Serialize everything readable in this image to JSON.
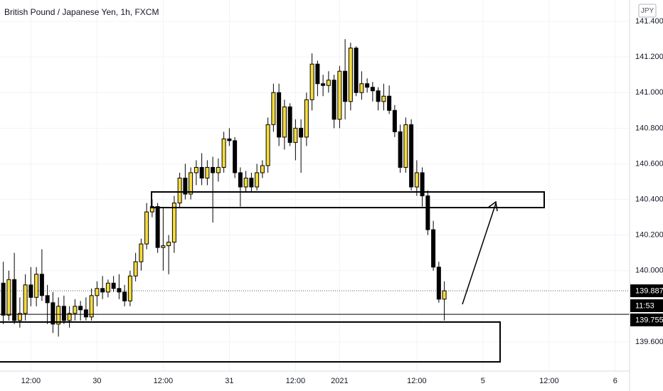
{
  "chart_data": {
    "type": "candlestick",
    "title": "British Pound / Japanese Yen, 1h, FXCM",
    "currency": "JPY",
    "up_color": "#f7dc3c",
    "down_color": "#000000",
    "x": [
      0,
      1,
      2,
      3,
      4,
      5,
      6,
      7,
      8,
      9,
      10,
      11,
      12,
      13,
      14,
      15,
      16,
      17,
      18,
      19,
      20,
      21,
      22,
      23,
      24,
      25,
      26,
      27,
      28,
      29,
      30,
      31,
      32,
      33,
      34,
      35,
      36,
      37,
      38,
      39,
      40,
      41,
      42,
      43,
      44,
      45,
      46,
      47,
      48,
      49,
      50,
      51,
      52,
      53,
      54,
      55,
      56,
      57,
      58,
      59,
      60,
      61,
      62,
      63,
      64,
      65,
      66,
      67,
      68,
      69,
      70,
      71,
      72,
      73,
      74,
      75,
      76,
      77,
      78,
      79,
      80
    ],
    "open": [
      139.93,
      139.75,
      139.95,
      139.72,
      139.76,
      139.92,
      139.85,
      139.98,
      139.86,
      139.82,
      139.7,
      139.8,
      139.72,
      139.76,
      139.8,
      139.78,
      139.74,
      139.86,
      139.9,
      139.88,
      139.93,
      139.9,
      139.88,
      139.83,
      139.97,
      140.05,
      140.15,
      140.33,
      140.36,
      140.13,
      140.14,
      140.16,
      140.38,
      140.52,
      140.43,
      140.55,
      140.58,
      140.52,
      140.58,
      140.55,
      140.58,
      140.74,
      140.73,
      140.55,
      140.47,
      140.52,
      140.47,
      140.55,
      140.59,
      140.82,
      141.0,
      140.75,
      140.92,
      140.72,
      140.8,
      140.75,
      140.96,
      141.16,
      141.05,
      141.04,
      141.07,
      140.85,
      141.12,
      140.95,
      141.25,
      141.0,
      141.05,
      141.03,
      141.01,
      140.95,
      140.98,
      140.9,
      140.78,
      140.58,
      140.82,
      140.47,
      140.55,
      140.42,
      140.23,
      140.02,
      139.84
    ],
    "high": [
      140.05,
      140.0,
      140.1,
      139.85,
      139.98,
      140.02,
      140.02,
      140.12,
      139.92,
      139.88,
      139.85,
      139.86,
      139.8,
      139.84,
      139.83,
      139.85,
      139.9,
      139.94,
      139.97,
      139.95,
      139.97,
      139.98,
      139.92,
      140.0,
      140.1,
      140.18,
      140.38,
      140.4,
      140.38,
      140.35,
      140.2,
      140.42,
      140.55,
      140.6,
      140.58,
      140.62,
      140.66,
      140.62,
      140.64,
      140.63,
      140.78,
      140.8,
      140.75,
      140.58,
      140.56,
      140.55,
      140.6,
      140.62,
      140.86,
      141.05,
      141.05,
      140.96,
      140.94,
      140.85,
      140.85,
      141.0,
      141.22,
      141.18,
      141.1,
      141.12,
      141.1,
      141.15,
      141.3,
      141.28,
      141.26,
      141.12,
      141.08,
      141.06,
      141.03,
      141.05,
      141.04,
      140.93,
      140.82,
      140.86,
      140.85,
      140.62,
      140.58,
      140.45,
      140.28,
      140.05,
      139.94
    ],
    "low": [
      139.7,
      139.72,
      139.7,
      139.68,
      139.72,
      139.8,
      139.8,
      139.83,
      139.7,
      139.65,
      139.63,
      139.7,
      139.68,
      139.72,
      139.72,
      139.72,
      139.72,
      139.8,
      139.84,
      139.85,
      139.88,
      139.84,
      139.8,
      139.8,
      139.94,
      140.0,
      140.12,
      140.3,
      140.1,
      140.0,
      139.98,
      140.1,
      140.35,
      140.4,
      140.4,
      140.48,
      140.48,
      140.48,
      140.27,
      140.5,
      140.55,
      140.7,
      140.52,
      140.36,
      140.44,
      140.44,
      140.45,
      140.52,
      140.55,
      140.78,
      140.7,
      140.68,
      140.7,
      140.62,
      140.55,
      140.7,
      140.9,
      140.98,
      140.98,
      141.0,
      140.8,
      140.8,
      140.85,
      140.9,
      140.98,
      140.96,
      141.0,
      140.95,
      140.9,
      140.9,
      140.88,
      140.75,
      140.55,
      140.55,
      140.45,
      140.42,
      140.36,
      140.2,
      140.0,
      139.82,
      139.72
    ],
    "close": [
      139.75,
      139.95,
      139.72,
      139.76,
      139.92,
      139.85,
      139.98,
      139.86,
      139.82,
      139.7,
      139.8,
      139.72,
      139.76,
      139.8,
      139.78,
      139.74,
      139.86,
      139.9,
      139.88,
      139.93,
      139.9,
      139.88,
      139.83,
      139.97,
      140.05,
      140.15,
      140.33,
      140.36,
      140.13,
      140.14,
      140.16,
      140.38,
      140.52,
      140.43,
      140.55,
      140.58,
      140.52,
      140.58,
      140.55,
      140.58,
      140.74,
      140.73,
      140.55,
      140.47,
      140.52,
      140.47,
      140.55,
      140.59,
      140.82,
      141.0,
      140.75,
      140.92,
      140.72,
      140.8,
      140.75,
      140.96,
      141.16,
      141.05,
      141.04,
      141.07,
      140.85,
      141.12,
      140.95,
      141.25,
      141.0,
      141.05,
      141.03,
      141.01,
      140.95,
      140.98,
      140.9,
      140.78,
      140.58,
      140.82,
      140.47,
      140.55,
      140.42,
      140.23,
      140.02,
      139.84,
      139.887
    ],
    "xlim": [
      -0.6,
      113.6
    ],
    "xticks": [
      {
        "value": 5,
        "label": "12:00"
      },
      {
        "value": 17,
        "label": "30"
      },
      {
        "value": 29,
        "label": "12:00"
      },
      {
        "value": 41,
        "label": "31"
      },
      {
        "value": 53,
        "label": "12:00"
      },
      {
        "value": 61,
        "label": "2021"
      },
      {
        "value": 75,
        "label": "12:00"
      },
      {
        "value": 87,
        "label": "5"
      },
      {
        "value": 99,
        "label": "12:00"
      },
      {
        "value": 111,
        "label": "6"
      }
    ],
    "ylim": [
      139.436,
      141.52
    ],
    "yticks": [
      {
        "value": 141.4,
        "label": "141.400"
      },
      {
        "value": 141.2,
        "label": "141.200"
      },
      {
        "value": 141.0,
        "label": "141.000"
      },
      {
        "value": 140.8,
        "label": "140.800"
      },
      {
        "value": 140.6,
        "label": "140.600"
      },
      {
        "value": 140.4,
        "label": "140.400"
      },
      {
        "value": 140.2,
        "label": "140.200"
      },
      {
        "value": 140.0,
        "label": "140.000"
      },
      {
        "value": 139.6,
        "label": "139.600"
      }
    ],
    "grid": true,
    "price_labels": [
      {
        "value": 139.887,
        "label": "139.887"
      },
      {
        "value": 139.755,
        "label": "139.755"
      }
    ],
    "countdown": "11:53"
  }
}
